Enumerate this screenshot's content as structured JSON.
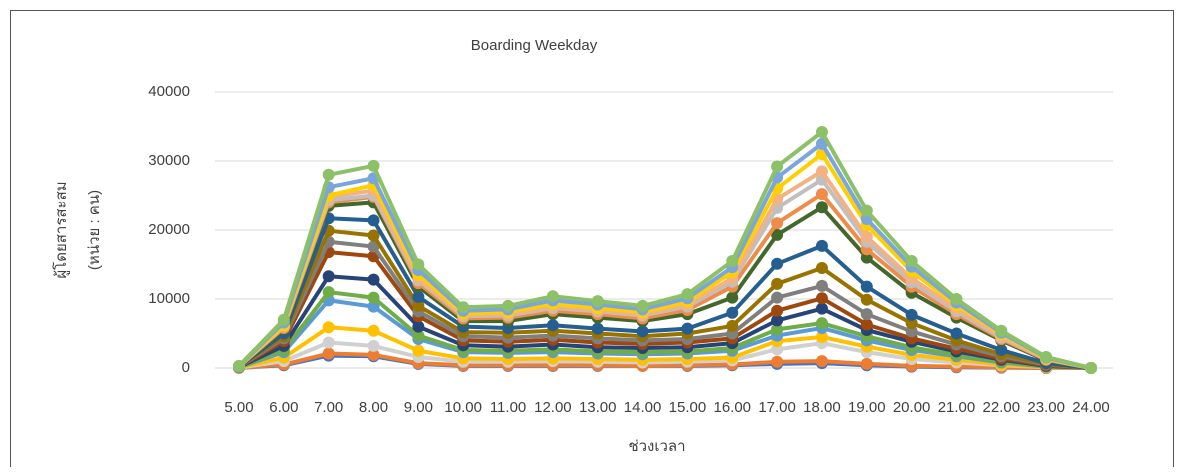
{
  "chart_data": {
    "type": "line",
    "title": "Boarding Weekday",
    "y_label_lines": [
      "ผู้โดยสารสะสม",
      "(หน่วย : คน)"
    ],
    "x_label": "ช่วงเวลา",
    "categories": [
      "5.00",
      "6.00",
      "7.00",
      "8.00",
      "9.00",
      "10.00",
      "11.00",
      "12.00",
      "13.00",
      "14.00",
      "15.00",
      "16.00",
      "17.00",
      "18.00",
      "19.00",
      "20.00",
      "21.00",
      "22.00",
      "23.00",
      "24.00"
    ],
    "ylim": [
      0,
      40000
    ],
    "yticks": [
      0,
      10000,
      20000,
      30000,
      40000
    ],
    "grid": true,
    "series": [
      {
        "color": "#4472c4",
        "values": [
          10,
          400,
          1800,
          1700,
          600,
          300,
          300,
          300,
          300,
          300,
          300,
          400,
          600,
          700,
          400,
          200,
          100,
          50,
          0,
          0
        ]
      },
      {
        "color": "#ed7d31",
        "values": [
          20,
          500,
          2100,
          1900,
          700,
          400,
          400,
          400,
          400,
          300,
          400,
          500,
          900,
          1000,
          600,
          300,
          200,
          100,
          0,
          0
        ]
      },
      {
        "color": "#d0d0d0",
        "values": [
          40,
          1000,
          3700,
          3200,
          1600,
          900,
          900,
          1000,
          900,
          800,
          900,
          1100,
          2700,
          3600,
          2300,
          1300,
          800,
          400,
          100,
          0
        ]
      },
      {
        "color": "#ffc000",
        "values": [
          60,
          1500,
          5900,
          5400,
          2500,
          1400,
          1300,
          1400,
          1300,
          1200,
          1300,
          1500,
          3900,
          4500,
          3100,
          1900,
          1200,
          500,
          150,
          0
        ]
      },
      {
        "color": "#5b9bd5",
        "values": [
          90,
          2300,
          9800,
          8900,
          4200,
          2300,
          2200,
          2300,
          2100,
          2000,
          2100,
          2500,
          4700,
          5800,
          4000,
          2600,
          1700,
          800,
          200,
          0
        ]
      },
      {
        "color": "#70ad47",
        "values": [
          100,
          2600,
          11000,
          10200,
          4700,
          2600,
          2500,
          2700,
          2400,
          2300,
          2400,
          2900,
          5600,
          6500,
          4600,
          3000,
          1900,
          900,
          250,
          0
        ]
      },
      {
        "color": "#264478",
        "values": [
          120,
          3200,
          13300,
          12800,
          6000,
          3300,
          3100,
          3400,
          3000,
          2900,
          3000,
          3600,
          6900,
          8600,
          5500,
          3800,
          2400,
          1200,
          300,
          0
        ]
      },
      {
        "color": "#9e480e",
        "values": [
          140,
          3900,
          16800,
          16200,
          7500,
          4000,
          3800,
          4100,
          3700,
          3500,
          3700,
          4300,
          8300,
          10100,
          6300,
          4300,
          2800,
          1400,
          400,
          0
        ]
      },
      {
        "color": "#7f7f7f",
        "values": [
          150,
          4300,
          18300,
          17600,
          8200,
          4600,
          4400,
          4700,
          4300,
          4000,
          4200,
          5000,
          10200,
          11900,
          7800,
          5300,
          3400,
          1700,
          500,
          0
        ]
      },
      {
        "color": "#997300",
        "values": [
          160,
          4600,
          19900,
          19200,
          9000,
          5200,
          5100,
          5400,
          5000,
          4600,
          5000,
          6100,
          12200,
          14500,
          9900,
          6500,
          4000,
          2000,
          600,
          0
        ]
      },
      {
        "color": "#255e91",
        "values": [
          180,
          5000,
          21700,
          21400,
          10300,
          6000,
          5800,
          6200,
          5700,
          5300,
          5700,
          8000,
          15100,
          17700,
          11800,
          7700,
          5000,
          2600,
          700,
          0
        ]
      },
      {
        "color": "#43682b",
        "values": [
          200,
          5600,
          23500,
          24000,
          11800,
          6800,
          6800,
          7800,
          7300,
          6800,
          7800,
          10200,
          19300,
          23300,
          16000,
          10900,
          7300,
          4000,
          1100,
          0
        ]
      },
      {
        "color": "#f08c4a",
        "values": [
          210,
          5800,
          24000,
          24800,
          12300,
          7200,
          7300,
          8300,
          7800,
          7200,
          8400,
          11800,
          21000,
          25200,
          17200,
          11800,
          7800,
          4200,
          1200,
          0
        ]
      },
      {
        "color": "#bfbfbf",
        "values": [
          220,
          6000,
          24300,
          25000,
          12700,
          7500,
          7600,
          8700,
          8200,
          7600,
          8900,
          12500,
          23200,
          27300,
          18300,
          12400,
          8200,
          4400,
          1300,
          0
        ]
      },
      {
        "color": "#f4b183",
        "values": [
          230,
          6100,
          24800,
          25700,
          13000,
          7700,
          7800,
          9000,
          8400,
          7800,
          9200,
          13000,
          24500,
          28500,
          19000,
          13000,
          8600,
          4600,
          1300,
          0
        ]
      },
      {
        "color": "#ffd000",
        "values": [
          240,
          6200,
          25000,
          26500,
          13500,
          7900,
          8100,
          9300,
          8700,
          8100,
          9600,
          13900,
          26000,
          31000,
          20700,
          14000,
          9100,
          4900,
          1400,
          0
        ]
      },
      {
        "color": "#7aa6dd",
        "values": [
          250,
          6600,
          26200,
          27500,
          14200,
          8300,
          8500,
          9800,
          9200,
          8500,
          10100,
          14600,
          27600,
          32500,
          21600,
          14700,
          9500,
          5100,
          1500,
          0
        ]
      },
      {
        "color": "#8cc168",
        "values": [
          300,
          7000,
          28000,
          29300,
          15000,
          8800,
          9000,
          10400,
          9700,
          9000,
          10700,
          15500,
          29200,
          34200,
          22800,
          15500,
          10000,
          5400,
          1600,
          0
        ]
      }
    ]
  }
}
